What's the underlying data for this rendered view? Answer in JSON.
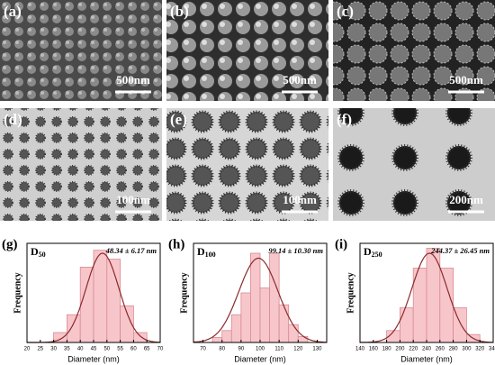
{
  "panels": [
    {
      "label": "(a)",
      "scale": "500nm"
    },
    {
      "label": "(b)",
      "scale": "500nm"
    },
    {
      "label": "(c)",
      "scale": "500nm"
    },
    {
      "label": "(d)",
      "scale": "100nm"
    },
    {
      "label": "(e)",
      "scale": "100nm"
    },
    {
      "label": "(f)",
      "scale": "200nm"
    }
  ],
  "chart_data": [
    {
      "type": "histogram",
      "panel_label": "(g)",
      "title": "D",
      "title_sub": "50",
      "annotation": "48.34 ± 6.17 nm",
      "x_label": "Diameter (nm)",
      "y_label": "Frequency",
      "bins": [
        30,
        35,
        40,
        45,
        50,
        55,
        60,
        65
      ],
      "values": [
        0.1,
        0.28,
        0.76,
        0.93,
        0.84,
        0.37,
        0.1
      ],
      "fit": {
        "mean": 48.34,
        "sd": 6.17,
        "peak": 0.9
      },
      "xlim": [
        20,
        70
      ],
      "xticks": [
        20,
        25,
        30,
        35,
        40,
        45,
        50,
        55,
        60,
        65,
        70
      ],
      "ylim": [
        0,
        1
      ],
      "color": "#f7c6cb",
      "edge_color": "#d98a92",
      "fit_color": "#8b2a2a"
    },
    {
      "type": "histogram",
      "panel_label": "(h)",
      "title": "D",
      "title_sub": "100",
      "annotation": "99.14 ± 10.30 nm",
      "x_label": "Diameter (nm)",
      "y_label": "Frequency",
      "bins": [
        75,
        80,
        85,
        90,
        95,
        100,
        105,
        110,
        115,
        120,
        125
      ],
      "values": [
        0.05,
        0.12,
        0.28,
        0.5,
        0.9,
        0.55,
        0.9,
        0.38,
        0.18,
        0.06
      ],
      "fit": {
        "mean": 99.14,
        "sd": 10.3,
        "peak": 0.85
      },
      "xlim": [
        65,
        135
      ],
      "xticks": [
        70,
        80,
        90,
        100,
        110,
        120,
        130
      ],
      "ylim": [
        0,
        1
      ],
      "color": "#f7c6cb",
      "edge_color": "#d98a92",
      "fit_color": "#8b2a2a"
    },
    {
      "type": "histogram",
      "panel_label": "(i)",
      "title": "D",
      "title_sub": "250",
      "annotation": "244.37 ± 26.45 nm",
      "x_label": "Diameter (nm)",
      "y_label": "Frequency",
      "bins": [
        180,
        200,
        220,
        240,
        260,
        280,
        300,
        320
      ],
      "values": [
        0.12,
        0.35,
        0.75,
        0.95,
        0.75,
        0.35,
        0.08
      ],
      "fit": {
        "mean": 244.37,
        "sd": 26.45,
        "peak": 0.9
      },
      "xlim": [
        140,
        340
      ],
      "xticks": [
        140,
        160,
        180,
        200,
        220,
        240,
        260,
        280,
        300,
        320,
        340
      ],
      "ylim": [
        0,
        1
      ],
      "color": "#f7c6cb",
      "edge_color": "#d98a92",
      "fit_color": "#8b2a2a"
    }
  ]
}
